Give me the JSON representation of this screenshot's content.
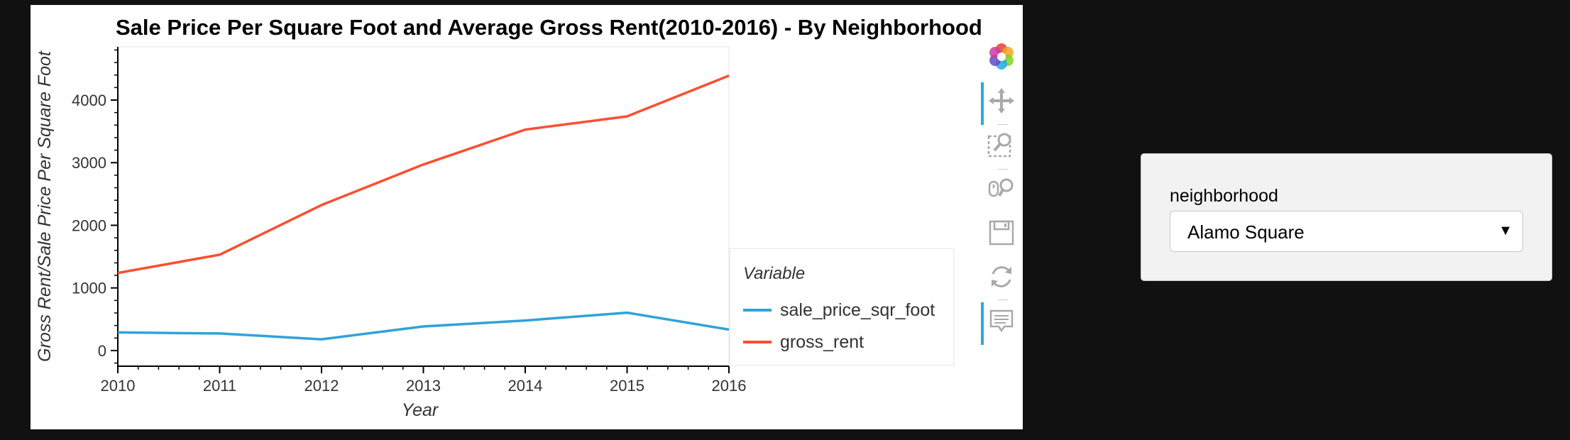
{
  "chart_data": {
    "type": "line",
    "title": "Sale Price Per Square Foot and Average Gross Rent(2010-2016) - By Neighborhood",
    "xlabel": "Year",
    "ylabel": "Gross Rent/Sale Price Per Square Foot",
    "x": [
      2010,
      2011,
      2012,
      2013,
      2014,
      2015,
      2016
    ],
    "xlim": [
      2010,
      2016
    ],
    "ylim": [
      -250,
      4850
    ],
    "xticks": [
      "2010",
      "2011",
      "2012",
      "2013",
      "2014",
      "2015",
      "2016"
    ],
    "yticks": [
      0,
      1000,
      2000,
      3000,
      4000
    ],
    "ytick_labels": [
      "0",
      "1000",
      "2000",
      "3000",
      "4000"
    ],
    "grid": false,
    "legend": {
      "title": "Variable",
      "placement": "right"
    },
    "series": [
      {
        "name": "sale_price_sqr_foot",
        "color": "#30a2da",
        "values": [
          290,
          272,
          180,
          385,
          480,
          605,
          335
        ]
      },
      {
        "name": "gross_rent",
        "color": "#fc4f30",
        "values": [
          1239,
          1530,
          2324,
          2971,
          3528,
          3739,
          4390
        ]
      }
    ]
  },
  "toolbar": {
    "tools": [
      {
        "icon": "bokeh-logo-icon",
        "active": false
      },
      {
        "icon": "pan-icon",
        "active": true
      },
      {
        "icon": "box-zoom-icon",
        "active": false
      },
      {
        "icon": "wheel-zoom-icon",
        "active": false
      },
      {
        "icon": "save-icon",
        "active": false
      },
      {
        "icon": "reset-icon",
        "active": false
      },
      {
        "icon": "hover-icon",
        "active": true
      }
    ]
  },
  "widget": {
    "label": "neighborhood",
    "selected": "Alamo Square",
    "arrow": "▼"
  }
}
